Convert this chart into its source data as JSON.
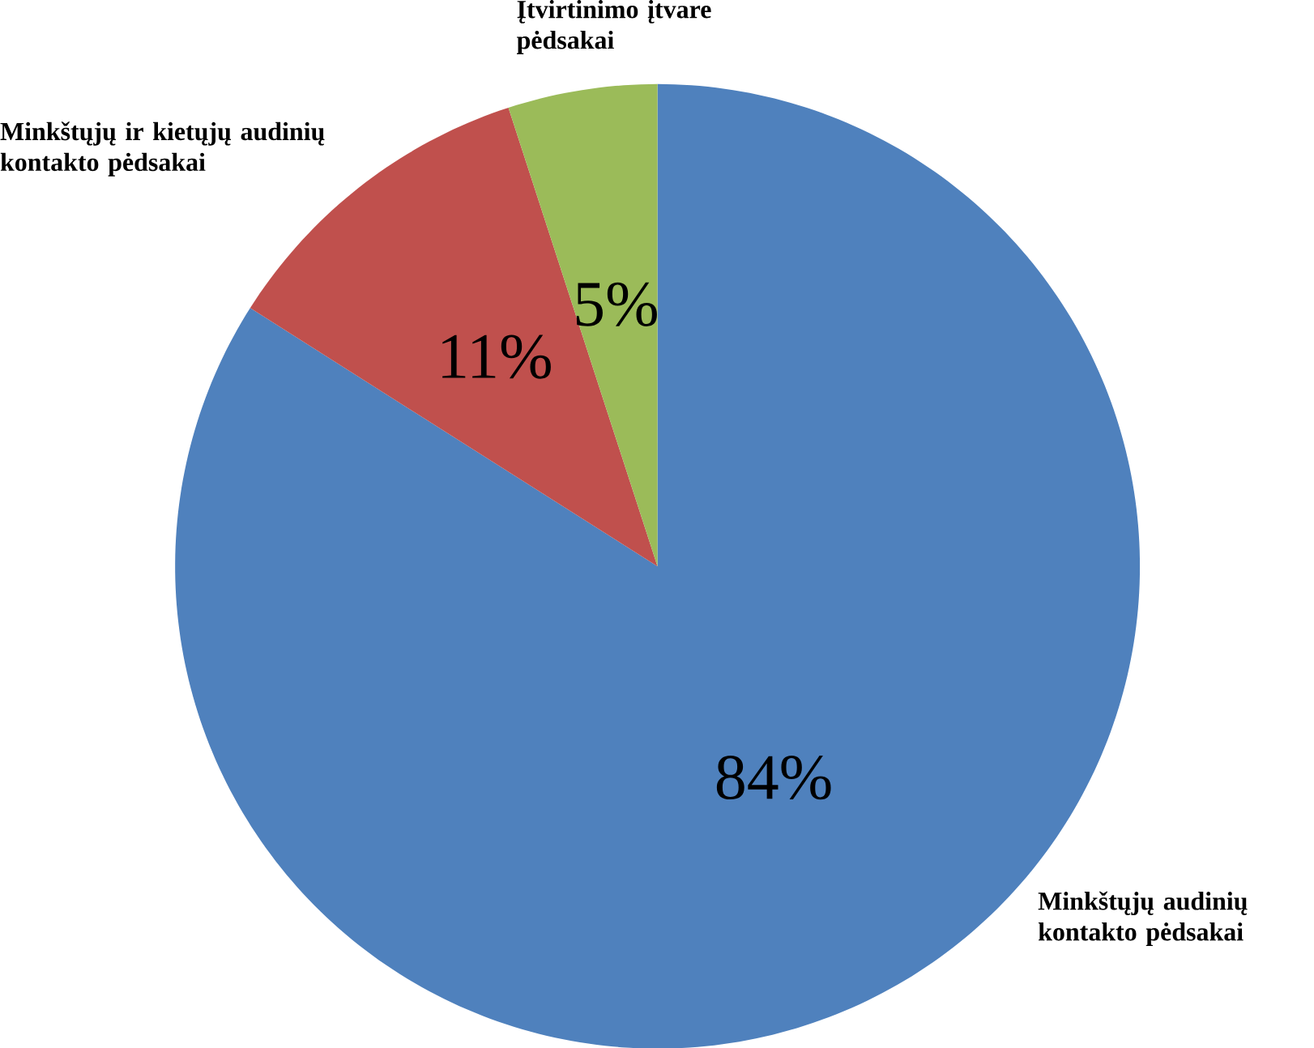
{
  "chart_data": {
    "type": "pie",
    "categories": [
      "Minkštųjų audinių kontakto pėdsakai",
      "Minkštųjų ir kietųjų audinių kontakto pėdsakai",
      "Įtvirtinimo įtvare pėdsakai"
    ],
    "values": [
      84,
      11,
      5
    ],
    "colors": [
      "#4f81bd",
      "#c0504d",
      "#9bbb59"
    ],
    "value_labels": [
      "84%",
      "11%",
      "5%"
    ]
  }
}
